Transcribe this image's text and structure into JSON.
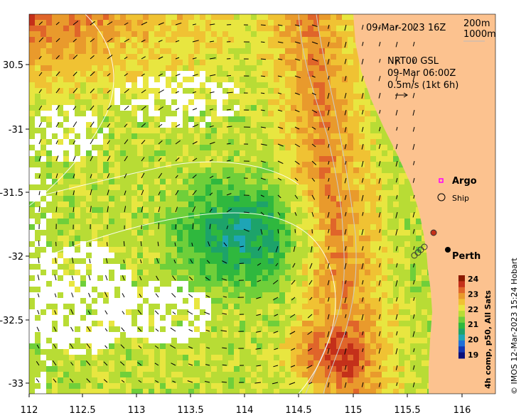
{
  "map": {
    "date_stamp": "09-Mar-2023 16Z",
    "depth_contours": [
      "200m",
      "1000m"
    ],
    "current_product": "NRT00 GSL",
    "current_time": "09-Mar 06:00Z",
    "current_scale": "0.5m/s (1kt 6h)",
    "legend": {
      "argo_label": "Argo",
      "ship_label": "Ship"
    },
    "city_label": "Perth",
    "colorbar": {
      "title": "4h comp, p50, All Sats",
      "ticks": [
        "24",
        "23",
        "22",
        "21",
        "20",
        "19"
      ],
      "colors": [
        "#8b1a00",
        "#c4301a",
        "#e0652a",
        "#e99a2c",
        "#f0c233",
        "#e8e640",
        "#b8dc35",
        "#6fcf3a",
        "#2fb83e",
        "#1da36a",
        "#1ea5b5",
        "#1f6fd8",
        "#1437b3",
        "#0a0f7a"
      ]
    },
    "credit": "© IMOS 12-Mar-2023 15:24 Hobart",
    "x_ticks": [
      "112",
      "112.5",
      "113",
      "113.5",
      "114",
      "114.5",
      "115",
      "115.5",
      "116"
    ],
    "y_ticks": [
      "30.5",
      "-31",
      "-31.5",
      "-32",
      "-32.5",
      "-33"
    ],
    "colors": {
      "land": "#fcc28f",
      "no_data": "#ffffff"
    }
  }
}
